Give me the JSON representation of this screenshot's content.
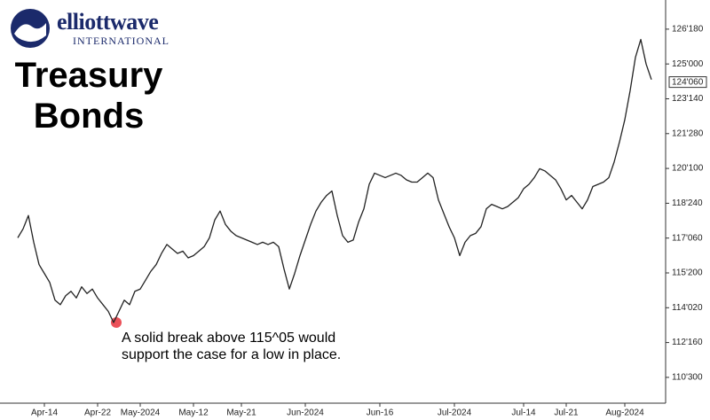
{
  "brand": {
    "name": "elliottwave",
    "tagline": "INTERNATIONAL"
  },
  "chart_data": {
    "type": "line",
    "title": "Treasury Bonds",
    "annotation": "A solid break above 115^05 would support the case for a low in place.",
    "color": "#222222",
    "categories": [
      null,
      null,
      null,
      null,
      null,
      "Apr-14",
      null,
      null,
      null,
      null,
      null,
      null,
      null,
      null,
      null,
      "Apr-22",
      null,
      null,
      null,
      null,
      null,
      null,
      null,
      "May-2024",
      null,
      null,
      null,
      null,
      null,
      null,
      null,
      null,
      null,
      "May-12",
      null,
      null,
      null,
      null,
      null,
      null,
      null,
      null,
      "May-21",
      null,
      null,
      null,
      null,
      null,
      null,
      null,
      null,
      null,
      null,
      null,
      "Jun-2024",
      null,
      null,
      null,
      null,
      null,
      null,
      null,
      null,
      null,
      null,
      null,
      null,
      null,
      "Jun-16",
      null,
      null,
      null,
      null,
      null,
      null,
      null,
      null,
      null,
      null,
      null,
      null,
      null,
      "Jul-2024",
      null,
      null,
      null,
      null,
      null,
      null,
      null,
      null,
      null,
      null,
      null,
      null,
      "Jul-14",
      null,
      null,
      null,
      null,
      null,
      null,
      null,
      "Jul-21",
      null,
      null,
      null,
      null,
      null,
      null,
      null,
      null,
      null,
      null,
      "Aug-2024",
      null,
      null,
      null,
      null,
      null
    ],
    "values": [
      117.2,
      117.6,
      118.2,
      117.0,
      116.0,
      115.6,
      115.2,
      114.4,
      114.2,
      114.6,
      114.8,
      114.5,
      115.0,
      114.7,
      114.9,
      114.5,
      114.2,
      113.9,
      113.4,
      113.9,
      114.4,
      114.2,
      114.8,
      114.9,
      115.3,
      115.7,
      116.0,
      116.5,
      116.9,
      116.7,
      116.5,
      116.6,
      116.3,
      116.4,
      116.6,
      116.8,
      117.2,
      118.0,
      118.4,
      117.8,
      117.5,
      117.3,
      117.2,
      117.1,
      117.0,
      116.9,
      117.0,
      116.9,
      117.0,
      116.8,
      115.8,
      114.9,
      115.6,
      116.4,
      117.1,
      117.8,
      118.4,
      118.8,
      119.1,
      119.3,
      118.2,
      117.3,
      117.0,
      117.1,
      117.9,
      118.5,
      119.6,
      120.1,
      120.0,
      119.9,
      120.0,
      120.1,
      120.0,
      119.8,
      119.7,
      119.7,
      119.9,
      120.1,
      119.9,
      118.9,
      118.3,
      117.7,
      117.2,
      116.4,
      117.0,
      117.3,
      117.4,
      117.7,
      118.5,
      118.7,
      118.6,
      118.5,
      118.6,
      118.8,
      119.0,
      119.4,
      119.6,
      119.9,
      120.3,
      120.2,
      120.0,
      119.8,
      119.4,
      118.9,
      119.1,
      118.8,
      118.5,
      118.9,
      119.5,
      119.6,
      119.7,
      119.9,
      120.6,
      121.5,
      122.5,
      123.8,
      125.3,
      126.1,
      125.0,
      124.3
    ],
    "ylim": [
      109.78,
      127.87
    ],
    "yticks": [
      {
        "value": 126.5625,
        "label": "126'180"
      },
      {
        "value": 125.0,
        "label": "125'000"
      },
      {
        "value": 123.4375,
        "label": "123'140"
      },
      {
        "value": 121.875,
        "label": "121'280"
      },
      {
        "value": 120.3125,
        "label": "120'100"
      },
      {
        "value": 118.75,
        "label": "118'240"
      },
      {
        "value": 117.1875,
        "label": "117'060"
      },
      {
        "value": 115.625,
        "label": "115'200"
      },
      {
        "value": 114.0625,
        "label": "114'020"
      },
      {
        "value": 112.5,
        "label": "112'160"
      },
      {
        "value": 110.9375,
        "label": "110'300"
      }
    ],
    "last_price": {
      "value": 124.1875,
      "label": "124'060"
    },
    "grid": false
  }
}
